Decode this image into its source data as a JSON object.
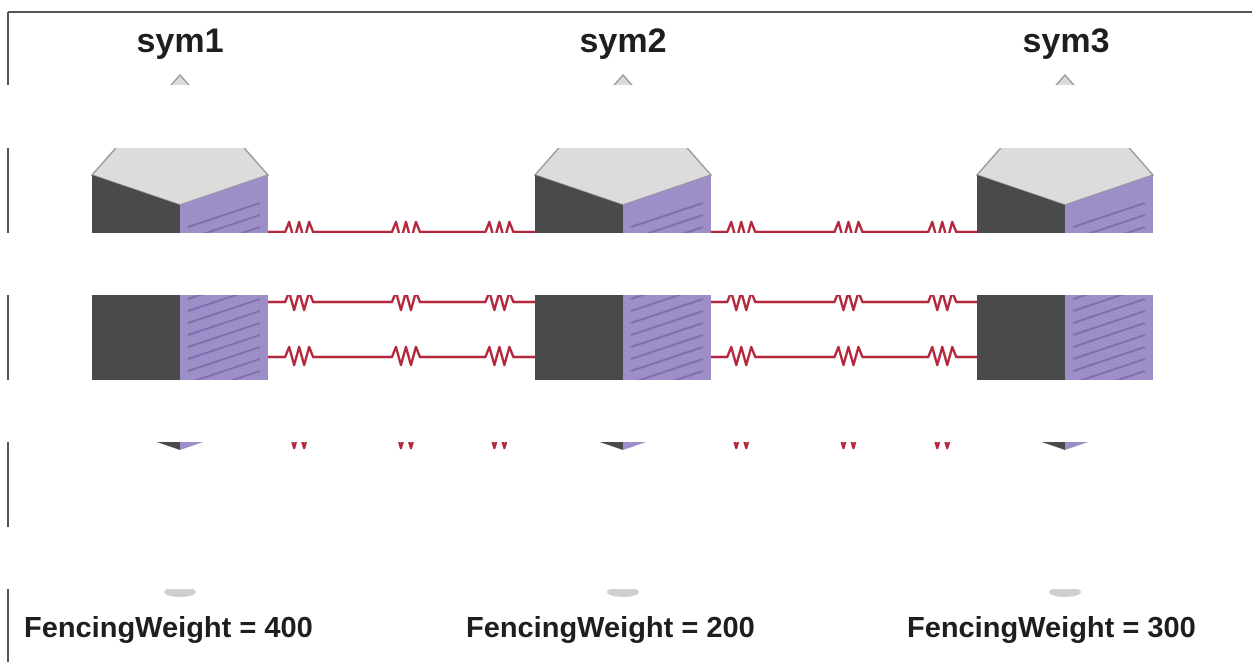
{
  "nodes": [
    {
      "name": "sym1",
      "weight_text": "FencingWeight = 400"
    },
    {
      "name": "sym2",
      "weight_text": "FencingWeight = 200"
    },
    {
      "name": "sym3",
      "weight_text": "FencingWeight = 300"
    }
  ],
  "colors": {
    "frame": "#555555",
    "server_top": "#dcdcdc",
    "server_front": "#4a4a4a",
    "server_side": "#9d8ec8",
    "server_side_shade": "#7f6fb0",
    "link": "#b3283c"
  },
  "icons": [
    "server-icon",
    "heartbeat-link-icon"
  ]
}
